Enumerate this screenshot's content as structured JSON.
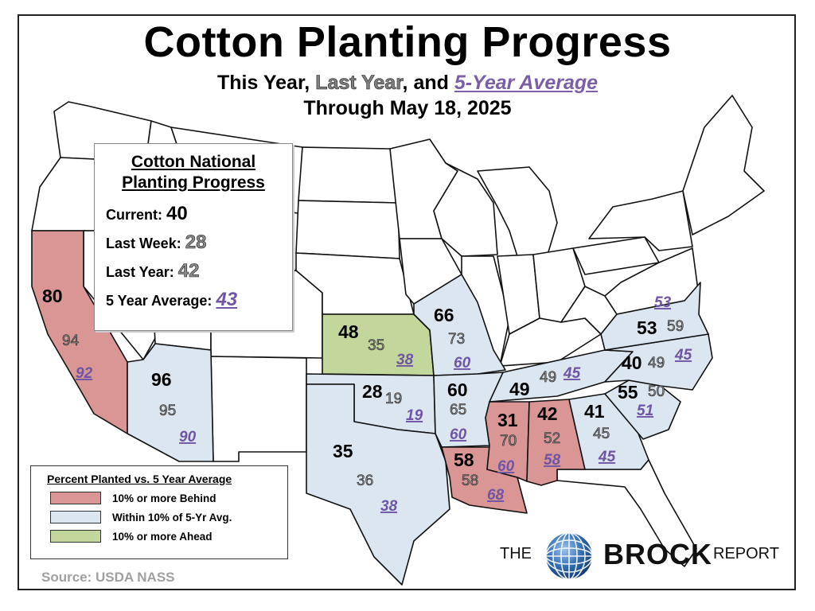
{
  "title": "Cotton Planting Progress",
  "subtitle": {
    "part1": "This Year, ",
    "last_year": "Last Year",
    "part2": ", and ",
    "avg": "5-Year Average"
  },
  "subtitle2": "Through May 18, 2025",
  "national": {
    "title_line1": "Cotton National",
    "title_line2": "Planting Progress",
    "current_label": "Current:",
    "current_value": "40",
    "last_week_label": "Last Week:",
    "last_week_value": "28",
    "last_year_label": "Last Year:",
    "last_year_value": "42",
    "avg_label": "5 Year Average:",
    "avg_value": "43"
  },
  "colors": {
    "behind": "#d99694",
    "within": "#dce6f1",
    "ahead": "#c3d69b",
    "none": "#ffffff",
    "last_year": "#8a8a8a",
    "average": "#6f55a4"
  },
  "states": {
    "california": {
      "current": "80",
      "last_year": "94",
      "avg": "92",
      "status": "behind"
    },
    "arizona": {
      "current": "96",
      "last_year": "95",
      "avg": "90",
      "status": "within"
    },
    "kansas": {
      "current": "48",
      "last_year": "35",
      "avg": "38",
      "status": "ahead"
    },
    "oklahoma": {
      "current": "28",
      "last_year": "19",
      "avg": "19",
      "status": "within"
    },
    "texas": {
      "current": "35",
      "last_year": "36",
      "avg": "38",
      "status": "within"
    },
    "missouri": {
      "current": "66",
      "last_year": "73",
      "avg": "60",
      "status": "within"
    },
    "arkansas": {
      "current": "60",
      "last_year": "65",
      "avg": "60",
      "status": "within"
    },
    "louisiana": {
      "current": "58",
      "last_year": "58",
      "avg": "68",
      "status": "behind"
    },
    "mississippi": {
      "current": "31",
      "last_year": "70",
      "avg": "60",
      "status": "behind"
    },
    "alabama": {
      "current": "42",
      "last_year": "52",
      "avg": "58",
      "status": "behind"
    },
    "tennessee": {
      "current": "49",
      "last_year": "49",
      "avg": "45",
      "status": "within"
    },
    "georgia": {
      "current": "41",
      "last_year": "45",
      "avg": "45",
      "status": "within"
    },
    "south_carolina": {
      "current": "55",
      "last_year": "50",
      "avg": "51",
      "status": "within"
    },
    "north_carolina": {
      "current": "40",
      "last_year": "49",
      "avg": "45",
      "status": "within"
    },
    "virginia": {
      "current": "53",
      "last_year": "59",
      "avg": "53",
      "status": "within"
    }
  },
  "legend": {
    "title": "Percent Planted vs. 5 Year Average",
    "behind": "10% or more Behind",
    "within": "Within 10% of 5-Yr Avg.",
    "ahead": "10% or more Ahead"
  },
  "source": "Source: USDA NASS",
  "logo": {
    "the": "THE",
    "name": "BROCK",
    "report": "REPORT"
  }
}
